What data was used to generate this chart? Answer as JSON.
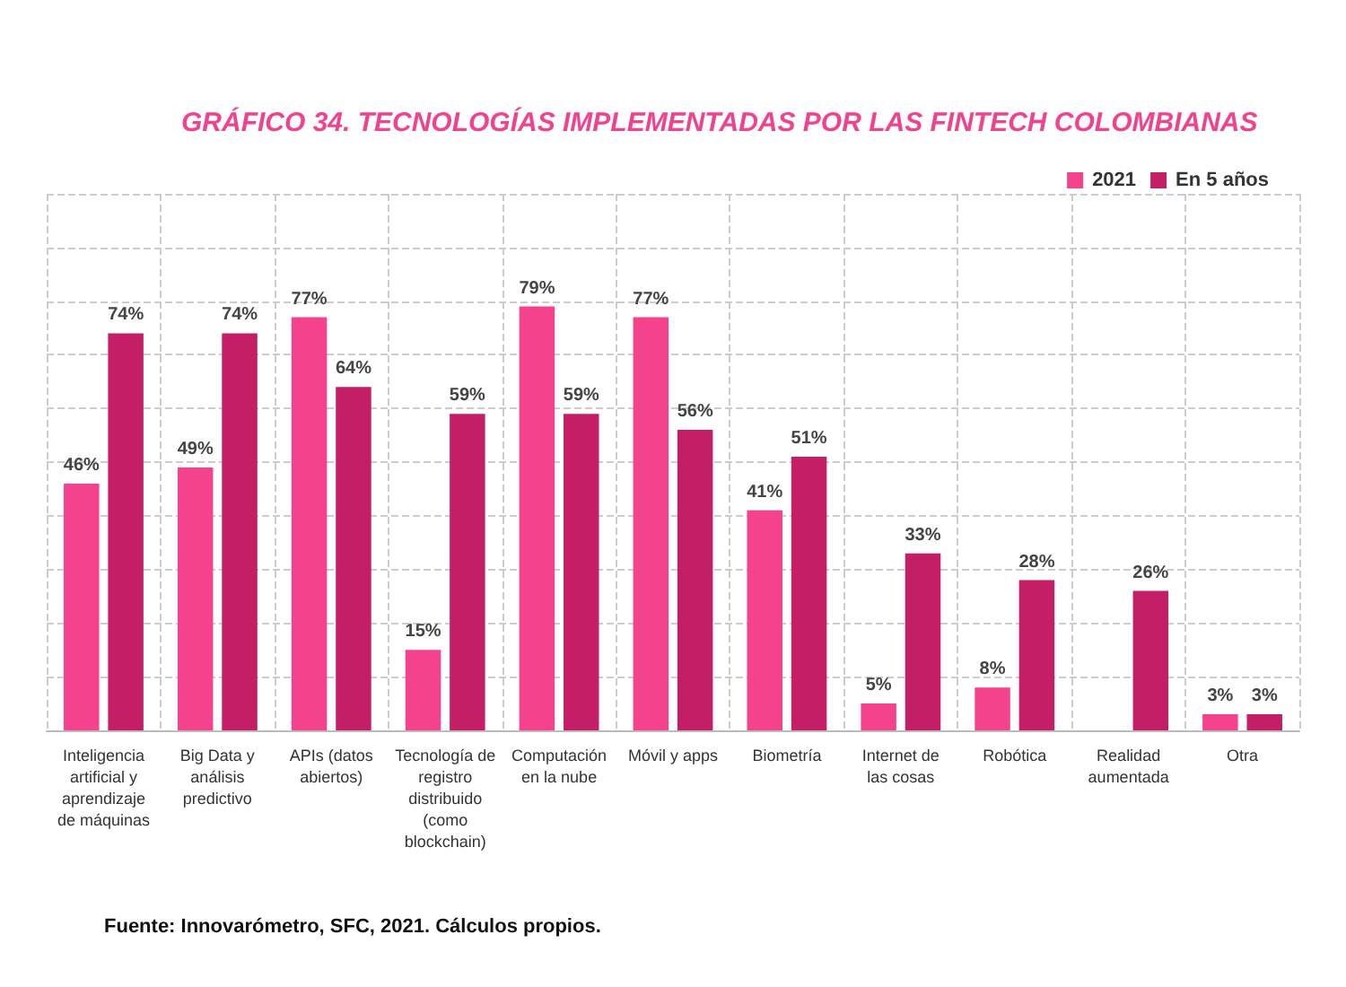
{
  "chart_data": {
    "type": "bar",
    "title": "GRÁFICO 34. TECNOLOGÍAS IMPLEMENTADAS POR LAS FINTECH COLOMBIANAS",
    "categories": [
      "Inteligencia artificial y aprendizaje de máquinas",
      "Big Data y análisis predictivo",
      "APIs (datos abiertos)",
      "Tecnología de registro distribuido (como blockchain)",
      "Computación en la nube",
      "Móvil y apps",
      "Biometría",
      "Internet de las cosas",
      "Robótica",
      "Realidad aumentada",
      "Otra"
    ],
    "series": [
      {
        "name": "2021",
        "color": "#f5428c",
        "values": [
          46,
          49,
          77,
          15,
          79,
          77,
          41,
          5,
          8,
          null,
          3
        ],
        "value_labels": [
          "46%",
          "49%",
          "77%",
          "15%",
          "79%",
          "77%",
          "41%",
          "5%",
          "8%",
          null,
          "3%"
        ]
      },
      {
        "name": "En 5 años",
        "color": "#c41f66",
        "values": [
          74,
          74,
          64,
          59,
          59,
          56,
          51,
          33,
          28,
          26,
          3
        ],
        "value_labels": [
          "74%",
          "74%",
          "64%",
          "59%",
          "59%",
          "56%",
          "51%",
          "33%",
          "28%",
          "26%",
          "3%"
        ]
      }
    ],
    "ylim": [
      0,
      100
    ],
    "yticks": [
      0,
      10,
      20,
      30,
      40,
      50,
      60,
      70,
      80,
      90,
      100
    ],
    "grid": true,
    "legend": "top right",
    "tick_labels": "x",
    "annotations": [
      "Fuente: Innovarómetro, SFC, 2021. Cálculos propios."
    ]
  }
}
